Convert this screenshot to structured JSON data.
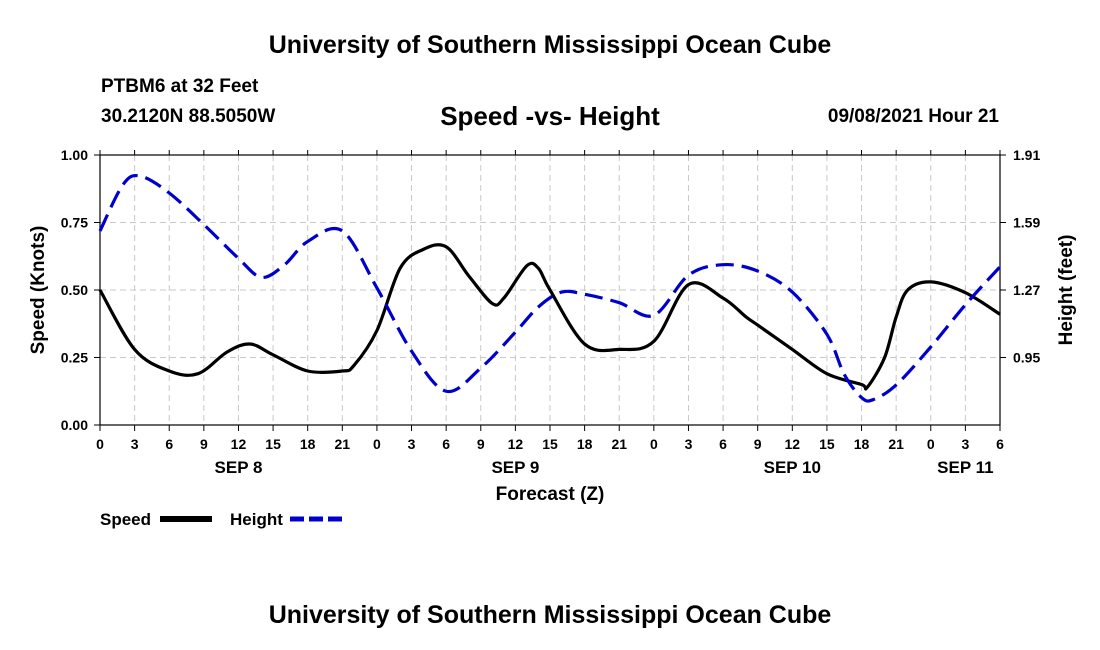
{
  "header": {
    "title": "University of Southern Mississippi Ocean Cube",
    "station": "PTBM6 at 32 Feet",
    "coordinates": "30.2120N  88.5050W",
    "chart_title": "Speed -vs- Height",
    "datetime": "09/08/2021 Hour 21"
  },
  "footer": {
    "title": "University of Southern Mississippi Ocean Cube"
  },
  "colors": {
    "speed": "#000000",
    "height": "#0000cc",
    "grid": "#c8c8c8"
  },
  "chart_data": {
    "type": "line",
    "title": "Speed -vs- Height",
    "xlabel": "Forecast (Z)",
    "ylabel": "Speed (Knots)",
    "y2label": "Height (feet)",
    "x_unit": "hours since SEP 8 00Z",
    "xlim": [
      0,
      78
    ],
    "ylim": [
      0,
      1
    ],
    "y2lim": [
      0.63,
      1.91
    ],
    "x_ticks": [
      0,
      3,
      6,
      9,
      12,
      15,
      18,
      21,
      24,
      27,
      30,
      33,
      36,
      39,
      42,
      45,
      48,
      51,
      54,
      57,
      60,
      63,
      66,
      69,
      72,
      75,
      78
    ],
    "x_tick_labels": [
      "0",
      "3",
      "6",
      "9",
      "12",
      "15",
      "18",
      "21",
      "0",
      "3",
      "6",
      "9",
      "12",
      "15",
      "18",
      "21",
      "0",
      "3",
      "6",
      "9",
      "12",
      "15",
      "18",
      "21",
      "0",
      "3",
      "6"
    ],
    "y_ticks": [
      0,
      0.25,
      0.5,
      0.75,
      1
    ],
    "y_tick_labels": [
      "0.00",
      "0.25",
      "0.50",
      "0.75",
      "1.00"
    ],
    "y2_ticks": [
      0.95,
      1.27,
      1.59,
      1.91
    ],
    "y2_tick_labels": [
      "0.95",
      "1.27",
      "1.59",
      "1.91"
    ],
    "date_labels": [
      {
        "label": "SEP 8",
        "x": 12
      },
      {
        "label": "SEP 9",
        "x": 36
      },
      {
        "label": "SEP 10",
        "x": 60
      },
      {
        "label": "SEP 11",
        "x": 75
      }
    ],
    "grid": true,
    "legend": "bottom-left",
    "series": [
      {
        "name": "Speed",
        "axis": "left",
        "style": "solid",
        "x": [
          0,
          3,
          6,
          8.5,
          11,
          13,
          15,
          18,
          21,
          22,
          24,
          26,
          28,
          30,
          32,
          34,
          35,
          37,
          38,
          39,
          42,
          45,
          48,
          51,
          54,
          56,
          57,
          60,
          63,
          66,
          66.5,
          68,
          69,
          70,
          72,
          75,
          78
        ],
        "values": [
          0.5,
          0.28,
          0.2,
          0.19,
          0.27,
          0.3,
          0.26,
          0.2,
          0.2,
          0.22,
          0.35,
          0.58,
          0.65,
          0.66,
          0.55,
          0.45,
          0.47,
          0.59,
          0.58,
          0.5,
          0.3,
          0.28,
          0.31,
          0.52,
          0.47,
          0.4,
          0.37,
          0.28,
          0.19,
          0.15,
          0.14,
          0.25,
          0.4,
          0.5,
          0.53,
          0.49,
          0.41
        ]
      },
      {
        "name": "Height",
        "axis": "right",
        "style": "dashed",
        "x": [
          0,
          2,
          3.5,
          6,
          9,
          12,
          14,
          16,
          18,
          21,
          24,
          27,
          30,
          33,
          36,
          38,
          40,
          42,
          45,
          48,
          51,
          54,
          57,
          60,
          63,
          64.5,
          66,
          67,
          69,
          72,
          75,
          78
        ],
        "values": [
          1.55,
          1.77,
          1.81,
          1.73,
          1.58,
          1.42,
          1.33,
          1.39,
          1.5,
          1.55,
          1.28,
          0.98,
          0.79,
          0.9,
          1.07,
          1.19,
          1.26,
          1.25,
          1.21,
          1.15,
          1.34,
          1.39,
          1.36,
          1.26,
          1.06,
          0.87,
          0.76,
          0.75,
          0.82,
          1.0,
          1.2,
          1.38
        ]
      }
    ]
  }
}
